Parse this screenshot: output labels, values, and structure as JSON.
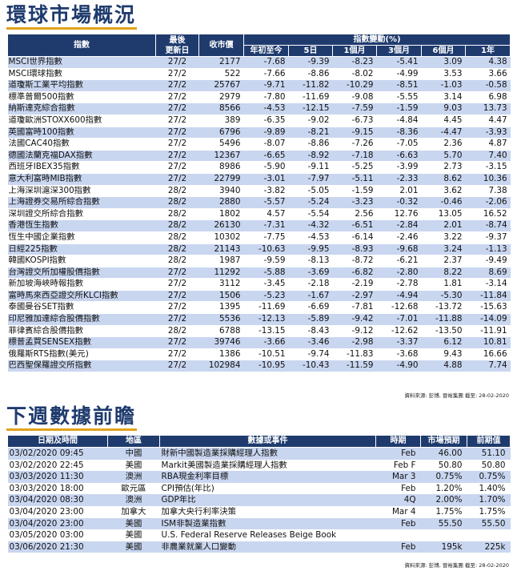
{
  "market_section": {
    "title": "環球市場概況",
    "headers": {
      "index": "指數",
      "last_update": "最後\n更新日",
      "close": "收市價",
      "change_group": "指數變動(%)",
      "periods": [
        "年初至今",
        "5日",
        "1個月",
        "3個月",
        "6個月",
        "1年"
      ]
    },
    "rows": [
      {
        "name": "MSCI世界指數",
        "date": "27/2",
        "close": "2177",
        "ytd": "-7.68",
        "d5": "-9.39",
        "m1": "-8.23",
        "m3": "-5.41",
        "m6": "3.09",
        "y1": "4.38"
      },
      {
        "name": "MSCI環球指數",
        "date": "27/2",
        "close": "522",
        "ytd": "-7.66",
        "d5": "-8.86",
        "m1": "-8.02",
        "m3": "-4.99",
        "m6": "3.53",
        "y1": "3.66"
      },
      {
        "name": "道瓊斯工業平均指數",
        "date": "27/2",
        "close": "25767",
        "ytd": "-9.71",
        "d5": "-11.82",
        "m1": "-10.29",
        "m3": "-8.51",
        "m6": "-1.03",
        "y1": "-0.58"
      },
      {
        "name": "標準普爾500指數",
        "date": "27/2",
        "close": "2979",
        "ytd": "-7.80",
        "d5": "-11.69",
        "m1": "-9.08",
        "m3": "-5.55",
        "m6": "3.14",
        "y1": "6.98"
      },
      {
        "name": "納斯達克綜合指數",
        "date": "27/2",
        "close": "8566",
        "ytd": "-4.53",
        "d5": "-12.15",
        "m1": "-7.59",
        "m3": "-1.59",
        "m6": "9.03",
        "y1": "13.73"
      },
      {
        "name": "道瓊歐洲STOXX600指數",
        "date": "27/2",
        "close": "389",
        "ytd": "-6.35",
        "d5": "-9.02",
        "m1": "-6.73",
        "m3": "-4.84",
        "m6": "4.45",
        "y1": "4.47"
      },
      {
        "name": "英國富時100指數",
        "date": "27/2",
        "close": "6796",
        "ytd": "-9.89",
        "d5": "-8.21",
        "m1": "-9.15",
        "m3": "-8.36",
        "m6": "-4.47",
        "y1": "-3.93"
      },
      {
        "name": "法國CAC40指數",
        "date": "27/2",
        "close": "5496",
        "ytd": "-8.07",
        "d5": "-8.86",
        "m1": "-7.26",
        "m3": "-7.05",
        "m6": "2.36",
        "y1": "4.87"
      },
      {
        "name": "德國法蘭克福DAX指數",
        "date": "27/2",
        "close": "12367",
        "ytd": "-6.65",
        "d5": "-8.92",
        "m1": "-7.18",
        "m3": "-6.63",
        "m6": "5.70",
        "y1": "7.40"
      },
      {
        "name": "西班牙IBEX35指數",
        "date": "27/2",
        "close": "8986",
        "ytd": "-5.90",
        "d5": "-9.11",
        "m1": "-5.25",
        "m3": "-3.99",
        "m6": "2.73",
        "y1": "-3.15"
      },
      {
        "name": "意大利富時MIB指數",
        "date": "27/2",
        "close": "22799",
        "ytd": "-3.01",
        "d5": "-7.97",
        "m1": "-5.11",
        "m3": "-2.33",
        "m6": "8.62",
        "y1": "10.36"
      },
      {
        "name": "上海深圳滬深300指數",
        "date": "28/2",
        "close": "3940",
        "ytd": "-3.82",
        "d5": "-5.05",
        "m1": "-1.59",
        "m3": "2.01",
        "m6": "3.62",
        "y1": "7.38"
      },
      {
        "name": "上海證券交易所綜合指數",
        "date": "28/2",
        "close": "2880",
        "ytd": "-5.57",
        "d5": "-5.24",
        "m1": "-3.23",
        "m3": "-0.32",
        "m6": "-0.46",
        "y1": "-2.06"
      },
      {
        "name": "深圳證交所綜合指數",
        "date": "28/2",
        "close": "1802",
        "ytd": "4.57",
        "d5": "-5.54",
        "m1": "2.56",
        "m3": "12.76",
        "m6": "13.05",
        "y1": "16.52"
      },
      {
        "name": "香港恆生指數",
        "date": "28/2",
        "close": "26130",
        "ytd": "-7.31",
        "d5": "-4.32",
        "m1": "-6.51",
        "m3": "-2.84",
        "m6": "2.01",
        "y1": "-8.74"
      },
      {
        "name": "恆生中國企業指數",
        "date": "28/2",
        "close": "10302",
        "ytd": "-7.75",
        "d5": "-4.53",
        "m1": "-6.14",
        "m3": "-2.46",
        "m6": "3.22",
        "y1": "-9.37"
      },
      {
        "name": "日經225指數",
        "date": "28/2",
        "close": "21143",
        "ytd": "-10.63",
        "d5": "-9.95",
        "m1": "-8.93",
        "m3": "-9.68",
        "m6": "3.24",
        "y1": "-1.13"
      },
      {
        "name": "韓國KOSPI指數",
        "date": "28/2",
        "close": "1987",
        "ytd": "-9.59",
        "d5": "-8.13",
        "m1": "-8.72",
        "m3": "-6.21",
        "m6": "2.37",
        "y1": "-9.49"
      },
      {
        "name": "台灣證交所加權股價指數",
        "date": "27/2",
        "close": "11292",
        "ytd": "-5.88",
        "d5": "-3.69",
        "m1": "-6.82",
        "m3": "-2.80",
        "m6": "8.22",
        "y1": "8.69"
      },
      {
        "name": "新加坡海峽時報指數",
        "date": "27/2",
        "close": "3112",
        "ytd": "-3.45",
        "d5": "-2.18",
        "m1": "-2.19",
        "m3": "-2.78",
        "m6": "1.81",
        "y1": "-3.14"
      },
      {
        "name": "富時馬來西亞證交所KLCI指數",
        "date": "27/2",
        "close": "1506",
        "ytd": "-5.23",
        "d5": "-1.67",
        "m1": "-2.97",
        "m3": "-4.94",
        "m6": "-5.30",
        "y1": "-11.84"
      },
      {
        "name": "泰國曼谷SET指數",
        "date": "27/2",
        "close": "1395",
        "ytd": "-11.69",
        "d5": "-6.69",
        "m1": "-7.81",
        "m3": "-12.68",
        "m6": "-13.72",
        "y1": "-15.63"
      },
      {
        "name": "印尼雅加達綜合股價指數",
        "date": "27/2",
        "close": "5536",
        "ytd": "-12.13",
        "d5": "-5.89",
        "m1": "-9.42",
        "m3": "-7.01",
        "m6": "-11.88",
        "y1": "-14.09"
      },
      {
        "name": "菲律賓綜合股價指數",
        "date": "28/2",
        "close": "6788",
        "ytd": "-13.15",
        "d5": "-8.43",
        "m1": "-9.12",
        "m3": "-12.62",
        "m6": "-13.50",
        "y1": "-11.91"
      },
      {
        "name": "標普孟買SENSEX指數",
        "date": "27/2",
        "close": "39746",
        "ytd": "-3.66",
        "d5": "-3.46",
        "m1": "-2.98",
        "m3": "-3.37",
        "m6": "6.12",
        "y1": "10.81"
      },
      {
        "name": "俄羅斯RTS指數(美元)",
        "date": "27/2",
        "close": "1386",
        "ytd": "-10.51",
        "d5": "-9.74",
        "m1": "-11.83",
        "m3": "-3.68",
        "m6": "9.43",
        "y1": "16.66"
      },
      {
        "name": "巴西聖保羅證交所指數",
        "date": "27/2",
        "close": "102984",
        "ytd": "-10.95",
        "d5": "-10.43",
        "m1": "-11.59",
        "m3": "-4.90",
        "m6": "4.88",
        "y1": "7.74"
      }
    ],
    "source": "資料來源: 彭博, 晉裕集團 截至: 28-02-2020"
  },
  "events_section": {
    "title": "下週數據前瞻",
    "headers": {
      "datetime": "日期及時間",
      "region": "地區",
      "event": "數據或事件",
      "period": "時期",
      "forecast": "市場預期",
      "previous": "前期值"
    },
    "rows": [
      {
        "datetime": "03/02/2020 09:45",
        "region": "中國",
        "event": "財新中國製造業採購經理人指數",
        "period": "Feb",
        "forecast": "46.00",
        "previous": "51.10"
      },
      {
        "datetime": "03/02/2020 22:45",
        "region": "美國",
        "event": "Markit美國製造業採購經理人指數",
        "period": "Feb F",
        "forecast": "50.80",
        "previous": "50.80"
      },
      {
        "datetime": "03/03/2020 11:30",
        "region": "澳洲",
        "event": "RBA現金利率目標",
        "period": "Mar 3",
        "forecast": "0.75%",
        "previous": "0.75%"
      },
      {
        "datetime": "03/03/2020 18:00",
        "region": "歐元區",
        "event": "CPI預估(年比)",
        "period": "Feb",
        "forecast": "1.20%",
        "previous": "1.40%"
      },
      {
        "datetime": "03/04/2020 08:30",
        "region": "澳洲",
        "event": "GDP年比",
        "period": "4Q",
        "forecast": "2.00%",
        "previous": "1.70%"
      },
      {
        "datetime": "03/04/2020 23:00",
        "region": "加拿大",
        "event": "加拿大央行利率決策",
        "period": "Mar 4",
        "forecast": "1.75%",
        "previous": "1.75%"
      },
      {
        "datetime": "03/04/2020 23:00",
        "region": "美國",
        "event": "ISM非製造業指數",
        "period": "Feb",
        "forecast": "55.50",
        "previous": "55.50"
      },
      {
        "datetime": "03/05/2020 03:00",
        "region": "美國",
        "event": "U.S. Federal Reserve Releases Beige Book",
        "period": "",
        "forecast": "",
        "previous": ""
      },
      {
        "datetime": "03/06/2020 21:30",
        "region": "美國",
        "event": "非農業就業人口變動",
        "period": "Feb",
        "forecast": "195k",
        "previous": "225k"
      }
    ],
    "source": "資料來源: 彭博, 晉裕集團 截至: 28-02-2020"
  }
}
